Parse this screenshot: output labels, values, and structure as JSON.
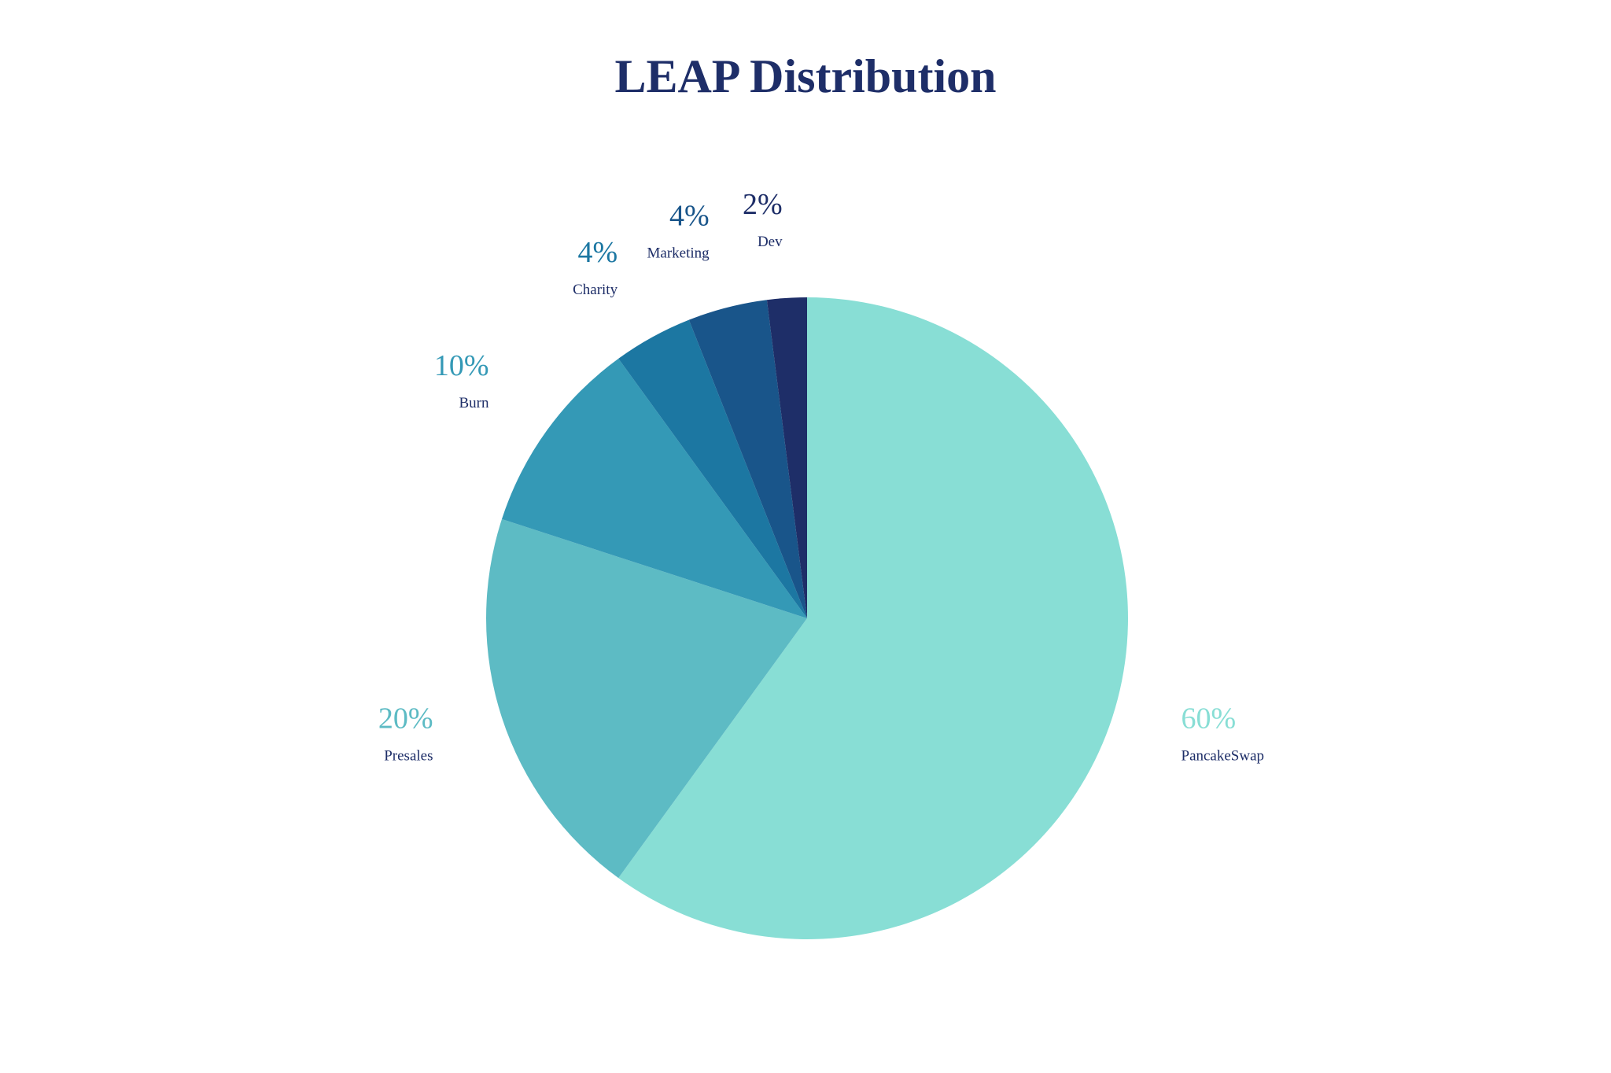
{
  "chart_data": {
    "type": "pie",
    "title": "LEAP Distribution",
    "start": "top",
    "direction": "clockwise",
    "legend": "none",
    "slices": [
      {
        "label": "PancakeSwap",
        "value": 60,
        "pct_text": "60%",
        "color": "#88ded5"
      },
      {
        "label": "Presales",
        "value": 20,
        "pct_text": "20%",
        "color": "#5dbbc4"
      },
      {
        "label": "Burn",
        "value": 10,
        "pct_text": "10%",
        "color": "#3499b6"
      },
      {
        "label": "Charity",
        "value": 4,
        "pct_text": "4%",
        "color": "#1c77a2"
      },
      {
        "label": "Marketing",
        "value": 4,
        "pct_text": "4%",
        "color": "#19558a"
      },
      {
        "label": "Dev",
        "value": 2,
        "pct_text": "2%",
        "color": "#1e2e68"
      }
    ],
    "title_color": "#1e2e68",
    "name_label_color": "#1e2e68"
  }
}
